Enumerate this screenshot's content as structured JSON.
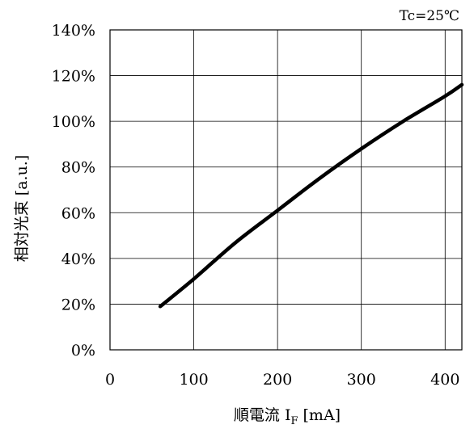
{
  "chart_data": {
    "type": "line",
    "condition_label": "Tc=25℃",
    "xlabel": {
      "main": "順電流 I",
      "subscript": "F",
      "unit": " [mA]"
    },
    "ylabel": "相対光束 [a.u.]",
    "xlim": [
      0,
      420
    ],
    "ylim": [
      0,
      140
    ],
    "x_ticks": [
      0,
      100,
      200,
      300,
      400
    ],
    "x_tick_labels": [
      "0",
      "100",
      "200",
      "300",
      "400"
    ],
    "y_ticks": [
      0,
      20,
      40,
      60,
      80,
      100,
      120,
      140
    ],
    "y_tick_labels": [
      "0%",
      "20%",
      "40%",
      "60%",
      "80%",
      "100%",
      "120%",
      "140%"
    ],
    "grid": true,
    "series": [
      {
        "color": "#000000",
        "x": [
          60,
          100,
          150,
          200,
          250,
          300,
          350,
          400,
          420
        ],
        "y": [
          19,
          31,
          47,
          61,
          75,
          88,
          100,
          111,
          116
        ]
      }
    ]
  }
}
